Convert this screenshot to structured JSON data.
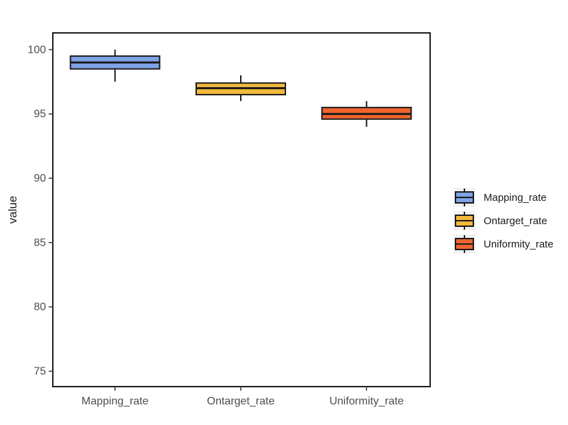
{
  "chart_data": {
    "type": "boxplot",
    "xlabel": "",
    "ylabel": "value",
    "ylim": [
      73.8,
      101.3
    ],
    "yticks": [
      75,
      80,
      85,
      90,
      95,
      100
    ],
    "grid": false,
    "legend_position": "right",
    "categories": [
      "Mapping_rate",
      "Ontarget_rate",
      "Uniformity_rate"
    ],
    "series": [
      {
        "name": "Mapping_rate",
        "color": "#7fa3e6",
        "whisker_low": 97.5,
        "q1": 98.5,
        "median": 99.0,
        "q3": 99.5,
        "whisker_high": 100.0
      },
      {
        "name": "Ontarget_rate",
        "color": "#f2b93b",
        "whisker_low": 96.0,
        "q1": 96.5,
        "median": 97.0,
        "q3": 97.4,
        "whisker_high": 98.0
      },
      {
        "name": "Uniformity_rate",
        "color": "#f0652f",
        "whisker_low": 94.0,
        "q1": 94.6,
        "median": 95.0,
        "q3": 95.5,
        "whisker_high": 96.0
      }
    ]
  }
}
